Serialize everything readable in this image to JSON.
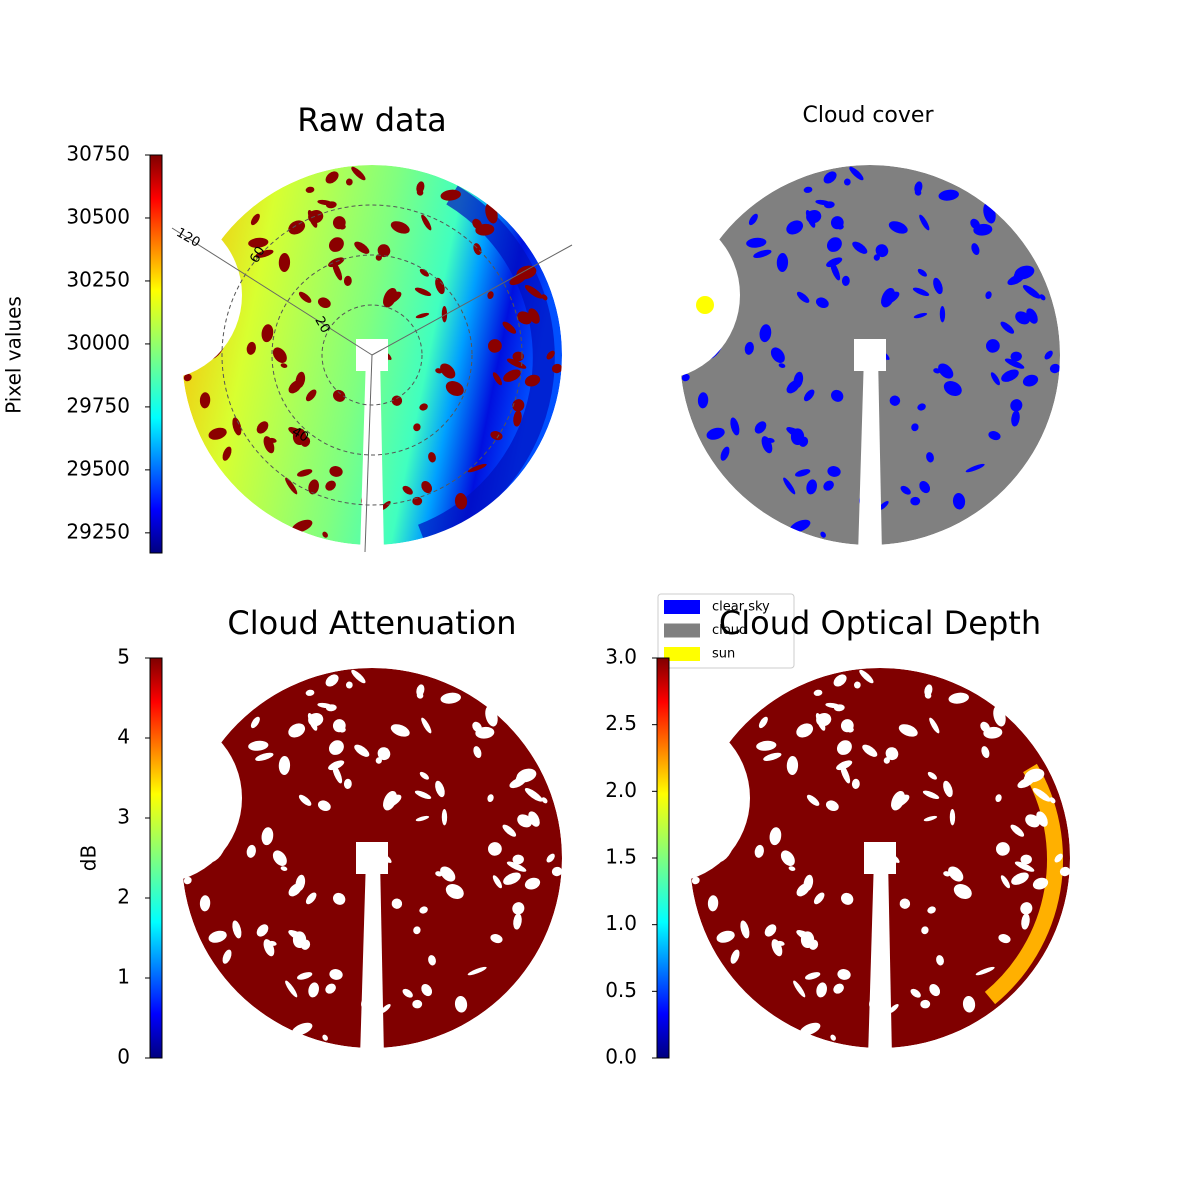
{
  "chart_data": [
    {
      "type": "image",
      "title": "Raw data",
      "colorbar": {
        "label": "Pixel values",
        "clim": [
          29170,
          30750
        ],
        "ticks": [
          29250,
          29500,
          29750,
          30000,
          30250,
          30500,
          30750
        ]
      },
      "annotations": [
        "120",
        "60",
        "20",
        "40"
      ]
    },
    {
      "type": "image",
      "title": "Cloud cover",
      "legend": "lower left",
      "series": [
        {
          "name": "clear sky",
          "color": "#0000ff"
        },
        {
          "name": "cloud",
          "color": "#808080"
        },
        {
          "name": "sun",
          "color": "#ffff00"
        }
      ]
    },
    {
      "type": "image",
      "title": "Cloud Attenuation",
      "colorbar": {
        "label": "dB",
        "clim": [
          0,
          5
        ],
        "ticks": [
          0,
          1,
          2,
          3,
          4,
          5
        ]
      }
    },
    {
      "type": "image",
      "title": "Cloud Optical Depth",
      "colorbar": {
        "clim": [
          0,
          3
        ],
        "ticks": [
          {
            "value": 0,
            "label": "0.0"
          },
          0.5,
          {
            "value": 1,
            "label": "1.0"
          },
          1.5,
          {
            "value": 2,
            "label": "2.0"
          },
          2.5,
          {
            "value": 3,
            "label": "3.0"
          }
        ]
      }
    }
  ]
}
